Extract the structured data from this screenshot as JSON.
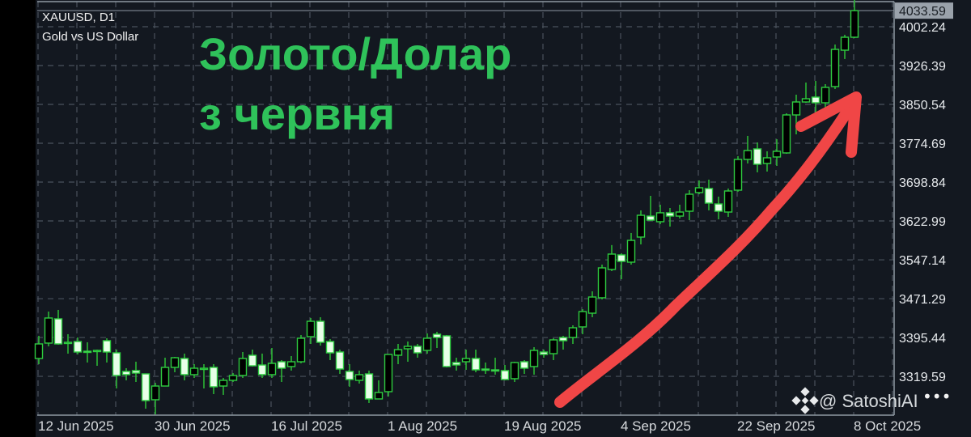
{
  "header": {
    "symbol": "XAUUSD, D1",
    "description": "Gold vs US Dollar"
  },
  "annotation": {
    "line1": "Золото/Долар",
    "line2": "з червня",
    "text_color": "#2fc25a",
    "arrow_color": "#f04646"
  },
  "watermark": {
    "text": "@ SatoshiAI",
    "logo": "binance-logo"
  },
  "menu": {
    "icon": "more-dots-icon",
    "label": "•••"
  },
  "colors": {
    "background": "#131820",
    "grid": "#4a525c",
    "bull_body": "#000000",
    "bear_body": "#e8ffe8",
    "candle_outline": "#2ecc40",
    "price_badge": "#9aa2ab"
  },
  "chart_data": {
    "type": "candlestick",
    "title": "XAUUSD, D1",
    "subtitle": "Gold vs US Dollar",
    "timeframe": "D1",
    "ylim": [
      3240,
      4055
    ],
    "grid": true,
    "current_price": "4033.59",
    "y_ticks": [
      "4002.24",
      "3926.39",
      "3850.54",
      "3774.69",
      "3698.84",
      "3622.99",
      "3547.14",
      "3471.29",
      "3395.44",
      "3319.59"
    ],
    "x_ticks": [
      "12 Jun 2025",
      "30 Jun 2025",
      "16 Jul 2025",
      "1 Aug 2025",
      "19 Aug 2025",
      "4 Sep 2025",
      "22 Sep 2025",
      "8 Oct 2025"
    ],
    "ohlc": [
      [
        3354.5,
        3398.7,
        3343.4,
        3382.9
      ],
      [
        3384.5,
        3446.1,
        3378.2,
        3433.5
      ],
      [
        3431.9,
        3449.3,
        3381.3,
        3382.9
      ],
      [
        3384.5,
        3401.9,
        3363.9,
        3386.1
      ],
      [
        3387.6,
        3395.5,
        3362.4,
        3367.1
      ],
      [
        3368.7,
        3386.1,
        3346.6,
        3368.0
      ],
      [
        3368.7,
        3371.8,
        3340.2,
        3370.3
      ],
      [
        3389.2,
        3394.0,
        3346.6,
        3367.1
      ],
      [
        3365.5,
        3371.8,
        3296.0,
        3321.3
      ],
      [
        3329.2,
        3335.5,
        3311.8,
        3322.9
      ],
      [
        3330.8,
        3348.2,
        3308.6,
        3326.0
      ],
      [
        3324.4,
        3324.4,
        3256.5,
        3272.3
      ],
      [
        3273.9,
        3307.0,
        3245.4,
        3300.7
      ],
      [
        3300.7,
        3356.0,
        3300.7,
        3337.1
      ],
      [
        3337.1,
        3357.6,
        3327.6,
        3356.0
      ],
      [
        3354.5,
        3364.0,
        3311.8,
        3322.9
      ],
      [
        3322.9,
        3343.4,
        3316.5,
        3335.5
      ],
      [
        3333.9,
        3343.4,
        3296.0,
        3335.5
      ],
      [
        3337.1,
        3343.4,
        3284.9,
        3299.2
      ],
      [
        3300.7,
        3316.5,
        3283.4,
        3311.8
      ],
      [
        3311.8,
        3326.0,
        3308.6,
        3321.3
      ],
      [
        3321.3,
        3367.1,
        3316.5,
        3354.5
      ],
      [
        3360.8,
        3371.8,
        3338.7,
        3340.2
      ],
      [
        3341.8,
        3364.0,
        3316.5,
        3322.9
      ],
      [
        3322.9,
        3375.0,
        3316.5,
        3345.0
      ],
      [
        3348.1,
        3351.3,
        3308.6,
        3335.5
      ],
      [
        3338.7,
        3359.2,
        3330.8,
        3348.1
      ],
      [
        3348.1,
        3400.3,
        3345.0,
        3394.0
      ],
      [
        3397.1,
        3433.5,
        3382.9,
        3427.1
      ],
      [
        3427.1,
        3435.0,
        3379.7,
        3386.1
      ],
      [
        3387.6,
        3392.4,
        3351.3,
        3365.5
      ],
      [
        3367.1,
        3371.8,
        3324.4,
        3333.9
      ],
      [
        3329.2,
        3343.4,
        3299.2,
        3313.4
      ],
      [
        3311.8,
        3330.8,
        3305.5,
        3322.9
      ],
      [
        3324.4,
        3330.8,
        3267.6,
        3275.5
      ],
      [
        3275.5,
        3311.8,
        3275.5,
        3288.1
      ],
      [
        3289.7,
        3362.4,
        3280.2,
        3362.4
      ],
      [
        3360.8,
        3382.9,
        3343.4,
        3371.8
      ],
      [
        3373.4,
        3387.6,
        3348.1,
        3378.2
      ],
      [
        3378.2,
        3382.9,
        3356.0,
        3365.5
      ],
      [
        3370.3,
        3403.4,
        3363.9,
        3394.0
      ],
      [
        3401.9,
        3406.6,
        3375.0,
        3395.5
      ],
      [
        3398.7,
        3400.3,
        3337.1,
        3338.7
      ],
      [
        3346.6,
        3356.0,
        3330.8,
        3341.8
      ],
      [
        3348.1,
        3371.8,
        3332.3,
        3354.5
      ],
      [
        3354.5,
        3371.8,
        3327.6,
        3332.3
      ],
      [
        3333.9,
        3346.6,
        3324.4,
        3333.0
      ],
      [
        3332.3,
        3356.0,
        3322.9,
        3331.5
      ],
      [
        3330.8,
        3341.8,
        3311.8,
        3313.4
      ],
      [
        3315.0,
        3348.1,
        3308.6,
        3346.6
      ],
      [
        3348.1,
        3351.3,
        3324.4,
        3335.5
      ],
      [
        3338.7,
        3376.6,
        3322.9,
        3370.3
      ],
      [
        3367.1,
        3371.8,
        3356.0,
        3362.4
      ],
      [
        3363.9,
        3394.0,
        3351.3,
        3390.8
      ],
      [
        3395.5,
        3398.7,
        3371.8,
        3389.2
      ],
      [
        3395.5,
        3419.2,
        3382.9,
        3414.5
      ],
      [
        3416.1,
        3450.8,
        3401.9,
        3446.1
      ],
      [
        3442.9,
        3485.6,
        3435.0,
        3474.5
      ],
      [
        3473.0,
        3537.8,
        3469.8,
        3531.4
      ],
      [
        3528.3,
        3575.9,
        3525.1,
        3558.3
      ],
      [
        3556.7,
        3559.9,
        3509.3,
        3544.1
      ],
      [
        3542.5,
        3599.4,
        3537.8,
        3585.1
      ],
      [
        3591.5,
        3643.6,
        3577.2,
        3634.1
      ],
      [
        3632.5,
        3672.0,
        3623.1,
        3624.6
      ],
      [
        3621.5,
        3654.7,
        3616.7,
        3638.9
      ],
      [
        3638.9,
        3648.3,
        3612.0,
        3632.5
      ],
      [
        3632.5,
        3654.7,
        3627.8,
        3640.4
      ],
      [
        3642.0,
        3683.1,
        3624.6,
        3675.2
      ],
      [
        3678.4,
        3702.1,
        3675.2,
        3687.8
      ],
      [
        3686.3,
        3703.6,
        3643.6,
        3657.8
      ],
      [
        3656.2,
        3670.5,
        3626.2,
        3642.0
      ],
      [
        3640.4,
        3686.3,
        3631.0,
        3681.5
      ],
      [
        3683.1,
        3749.5,
        3680.0,
        3743.1
      ],
      [
        3743.1,
        3789.0,
        3735.2,
        3760.5
      ],
      [
        3763.7,
        3776.3,
        3717.9,
        3733.7
      ],
      [
        3735.2,
        3759.0,
        3719.4,
        3746.3
      ],
      [
        3747.9,
        3782.6,
        3730.5,
        3759.0
      ],
      [
        3755.8,
        3833.2,
        3754.2,
        3830.0
      ],
      [
        3830.0,
        3869.5,
        3792.1,
        3855.3
      ],
      [
        3855.3,
        3893.2,
        3853.7,
        3861.6
      ],
      [
        3864.8,
        3896.4,
        3828.5,
        3853.7
      ],
      [
        3853.7,
        3890.1,
        3838.0,
        3883.8
      ],
      [
        3885.3,
        3967.5,
        3880.6,
        3958.0
      ],
      [
        3956.4,
        3986.5,
        3939.1,
        3981.7
      ],
      [
        3981.7,
        4054.4,
        3980.1,
        4033.59
      ]
    ]
  }
}
